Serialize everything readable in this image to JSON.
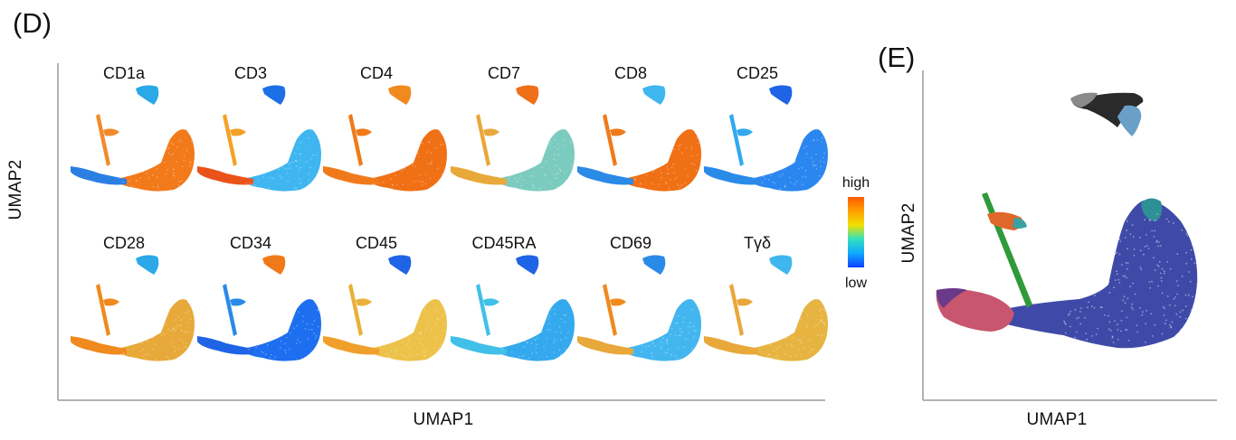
{
  "panel_d": {
    "letter": "(D)",
    "xlabel": "UMAP1",
    "ylabel": "UMAP2",
    "markers": [
      "CD1a",
      "CD3",
      "CD4",
      "CD7",
      "CD8",
      "CD25",
      "CD28",
      "CD34",
      "CD45",
      "CD45RA",
      "CD69",
      "Tγδ"
    ],
    "legend": {
      "high": "high",
      "low": "low",
      "gradient": [
        "#ff5a00",
        "#ffa000",
        "#f0e000",
        "#30e0c0",
        "#10a8ff",
        "#1040ff"
      ]
    },
    "marker_colors": {
      "CD1a": {
        "big": "#f27a1a",
        "top": "#2aa8e8",
        "left": "#2b7fe3",
        "arm": "#f28a2a"
      },
      "CD3": {
        "big": "#3fb6f0",
        "top": "#1d6fe8",
        "left": "#e9531a",
        "arm": "#f5a22a"
      },
      "CD4": {
        "big": "#f07015",
        "top": "#f08a1e",
        "left": "#f07a1a",
        "arm": "#f07a1a"
      },
      "CD7": {
        "big": "#7ccbbf",
        "top": "#f0701a",
        "left": "#e8a83a",
        "arm": "#e8a83a"
      },
      "CD8": {
        "big": "#f07015",
        "top": "#3fb6f0",
        "left": "#2a8ae8",
        "arm": "#f07a1a"
      },
      "CD25": {
        "big": "#2b86ef",
        "top": "#1f63e6",
        "left": "#2a8ae8",
        "arm": "#31a9ee"
      },
      "CD28": {
        "big": "#e7a93a",
        "top": "#2aa8e8",
        "left": "#f08a1e",
        "arm": "#f08a1e"
      },
      "CD34": {
        "big": "#1d6ff0",
        "top": "#f07a1a",
        "left": "#1f63e6",
        "arm": "#2a8ae8"
      },
      "CD45": {
        "big": "#ecc24a",
        "top": "#1f63e6",
        "left": "#f0a02a",
        "arm": "#eab03a"
      },
      "CD45RA": {
        "big": "#35a9ee",
        "top": "#1f63e6",
        "left": "#40c0e8",
        "arm": "#40c0e8"
      },
      "CD69": {
        "big": "#44b6ef",
        "top": "#2a8ae8",
        "left": "#e8a83a",
        "arm": "#f08a1e"
      },
      "Tγδ": {
        "big": "#e7b441",
        "top": "#3fb6f0",
        "left": "#e8a83a",
        "arm": "#e8a83a"
      }
    }
  },
  "panel_e": {
    "letter": "(E)",
    "xlabel": "UMAP1",
    "ylabel": "UMAP2",
    "cluster_colors": {
      "main": "#3f4aa8",
      "main_top": "#2e8f95",
      "left_tip": "#c8566e",
      "left_edge": "#6a3a8a",
      "arm_top": "#e0672a",
      "arm_top_mid": "#3aa0a0",
      "arm": "#2f9a3a",
      "top_dark": "#2a2a2a",
      "top_grey": "#8a8a8a",
      "top_light": "#6aa0c8"
    }
  }
}
